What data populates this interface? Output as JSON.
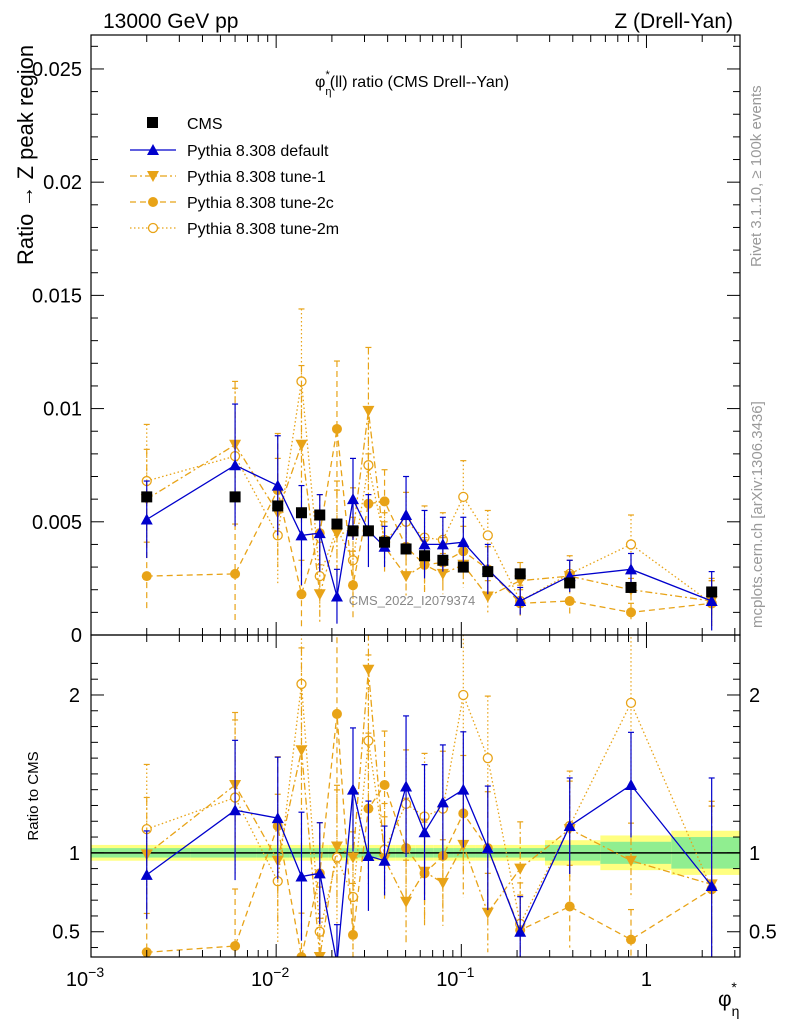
{
  "header": {
    "energy_label": "13000 GeV pp",
    "process_label": "Z (Drell-Yan)",
    "side_rivet": "Rivet 3.1.10, ≥ 100k events",
    "side_mcplots": "mcplots.cern.ch [arXiv:1306.3436]"
  },
  "chart_data": {
    "type": "scatter",
    "title": "φ*η(ll) ratio (CMS Drell--Yan)",
    "watermark": "CMS_2022_I2079374",
    "xlabel": "φ*η",
    "ylabel": "Ratio → Z peak region",
    "ratio_ylabel": "Ratio to CMS",
    "xscale": "log",
    "xlim": [
      0.001,
      3.2
    ],
    "ylim": [
      0,
      0.0265
    ],
    "ratio_ylim": [
      0.34,
      2.38
    ],
    "x_tick_labels": [
      "10^-3",
      "10^-2",
      "10^-1",
      "1"
    ],
    "y_tick_labels": [
      "0",
      "0.005",
      "0.01",
      "0.015",
      "0.02",
      "0.025"
    ],
    "ratio_tick_labels": [
      "0.5",
      "1",
      "2"
    ],
    "legend_position": "top-left",
    "colors": {
      "cms": "#000000",
      "default": "#0000cc",
      "tune": "#e8a317",
      "band_inner": "#90ee90",
      "band_outer": "#ffff80",
      "ratio_line": "#000000"
    },
    "x": [
      0.002,
      0.006,
      0.0102,
      0.0137,
      0.0172,
      0.0213,
      0.026,
      0.0315,
      0.0385,
      0.0503,
      0.0633,
      0.0795,
      0.1025,
      0.139,
      0.208,
      0.385,
      0.825,
      2.25
    ],
    "series": [
      {
        "name": "CMS",
        "style": "filled-square",
        "values": [
          0.0061,
          0.0061,
          0.0057,
          0.0054,
          0.0053,
          0.0049,
          0.0046,
          0.0046,
          0.0041,
          0.0038,
          0.0035,
          0.0033,
          0.003,
          0.0028,
          0.0027,
          0.0023,
          0.0021,
          0.0019
        ]
      },
      {
        "name": "Pythia 8.308 default",
        "style": "solid-triangle-up",
        "values": [
          0.0051,
          0.0075,
          0.0066,
          0.0044,
          0.0045,
          0.0017,
          0.006,
          0.0046,
          0.0039,
          0.0053,
          0.004,
          0.004,
          0.0041,
          0.0029,
          0.0015,
          0.0026,
          0.0029,
          0.0015
        ],
        "errors": [
          0.0017,
          0.0027,
          0.0022,
          0.0022,
          0.0017,
          0.0012,
          0.0018,
          0.0016,
          0.0009,
          0.0017,
          0.0015,
          0.0012,
          0.0011,
          0.0011,
          0.0006,
          0.0007,
          0.0007,
          0.0013
        ]
      },
      {
        "name": "Pythia 8.308 tune-1",
        "style": "dash-dot-triangle-down",
        "values": [
          0.006,
          0.0084,
          0.0054,
          0.0084,
          0.0018,
          0.0045,
          0.0045,
          0.0099,
          0.0039,
          0.0026,
          0.0031,
          0.0027,
          0.0031,
          0.0017,
          0.0024,
          0.0026,
          0.002,
          0.0015
        ],
        "errors": [
          0.0022,
          0.0028,
          0.0024,
          0.0035,
          0.0013,
          0.0019,
          0.002,
          0.0028,
          0.0011,
          0.001,
          0.0011,
          0.0009,
          0.001,
          0.0007,
          0.0008,
          0.0007,
          0.0005,
          0.001
        ]
      },
      {
        "name": "Pythia 8.308 tune-2c",
        "style": "dashed-filled-circle",
        "values": [
          0.0026,
          0.0027,
          0.0064,
          0.0018,
          0.0045,
          0.0091,
          0.0022,
          0.0058,
          0.0059,
          0.0039,
          0.0031,
          0.0032,
          0.0037,
          0.0029,
          0.0014,
          0.0015,
          0.001,
          0.0014
        ],
        "errors": [
          0.0015,
          0.0022,
          0.0025,
          0.0015,
          0.0017,
          0.003,
          0.0015,
          0.0022,
          0.0014,
          0.0012,
          0.0012,
          0.0011,
          0.0011,
          0.001,
          0.0006,
          0.0006,
          0.0004,
          0.001
        ]
      },
      {
        "name": "Pythia 8.308 tune-2m",
        "style": "dotted-open-circle",
        "values": [
          0.0068,
          0.0079,
          0.0044,
          0.0112,
          0.0026,
          0.0047,
          0.0033,
          0.0075,
          0.0042,
          0.005,
          0.0043,
          0.0042,
          0.0061,
          0.0044,
          0.0015,
          0.0027,
          0.004,
          0.0014
        ],
        "errors": [
          0.0025,
          0.003,
          0.0022,
          0.0032,
          0.0015,
          0.0021,
          0.0019,
          0.0025,
          0.0012,
          0.0013,
          0.0014,
          0.0012,
          0.0016,
          0.0011,
          0.0007,
          0.0008,
          0.0013,
          0.001
        ]
      }
    ],
    "ratio_series": [
      {
        "name": "Pythia 8.308 default",
        "values": [
          0.86,
          1.27,
          1.22,
          0.85,
          0.87,
          0.3,
          1.4,
          0.98,
          0.95,
          1.42,
          1.13,
          1.32,
          1.4,
          1.03,
          0.5,
          1.17,
          1.43,
          0.79
        ]
      },
      {
        "name": "Pythia 8.308 tune-1",
        "values": [
          0.99,
          1.43,
          0.95,
          1.65,
          0.34,
          1.04,
          0.97,
          2.16,
          0.96,
          0.69,
          0.88,
          0.81,
          1.05,
          0.62,
          0.9,
          1.15,
          0.95,
          0.8
        ]
      },
      {
        "name": "Pythia 8.308 tune-2c",
        "values": [
          0.37,
          0.41,
          1.17,
          0.34,
          0.87,
          1.88,
          0.48,
          1.28,
          1.43,
          1.03,
          0.87,
          0.98,
          1.25,
          1.03,
          0.51,
          0.66,
          0.45,
          0.77
        ]
      },
      {
        "name": "Pythia 8.308 tune-2m",
        "values": [
          1.15,
          1.35,
          0.82,
          2.07,
          0.5,
          0.97,
          0.72,
          1.71,
          1.02,
          1.31,
          1.23,
          1.28,
          2.0,
          1.6,
          0.55,
          1.17,
          1.95,
          0.77
        ]
      }
    ],
    "ratio_band_inner": [
      0.03,
      0.03,
      0.03,
      0.03,
      0.03,
      0.03,
      0.03,
      0.03,
      0.03,
      0.03,
      0.03,
      0.03,
      0.03,
      0.03,
      0.03,
      0.05,
      0.07,
      0.1
    ],
    "ratio_band_outer": [
      0.05,
      0.05,
      0.05,
      0.05,
      0.05,
      0.05,
      0.05,
      0.05,
      0.05,
      0.05,
      0.05,
      0.05,
      0.05,
      0.05,
      0.05,
      0.08,
      0.11,
      0.14
    ]
  }
}
